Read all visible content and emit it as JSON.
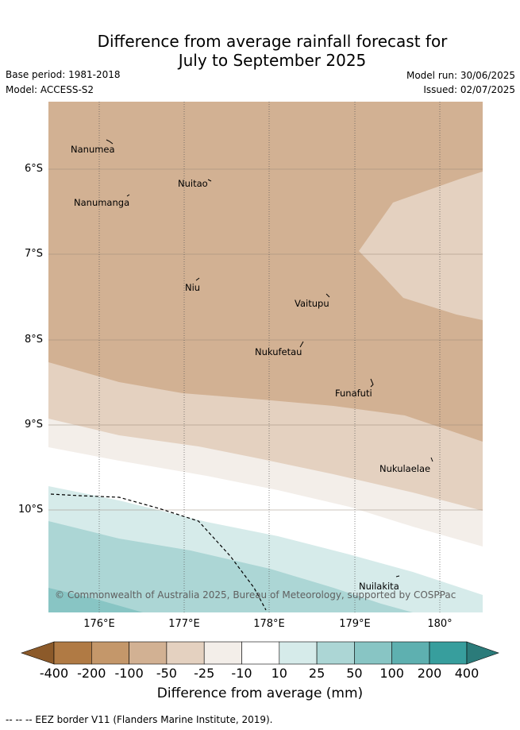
{
  "title_line1": "Difference from average rainfall forecast for",
  "title_line2": "July to September 2025",
  "base_period": "Base period: 1981-2018",
  "model": "Model: ACCESS-S2",
  "model_run": "Model run: 30/06/2025",
  "issued": "Issued: 02/07/2025",
  "map": {
    "lat_labels": [
      "6°S",
      "7°S",
      "8°S",
      "9°S",
      "10°S"
    ],
    "lon_labels": [
      "176°E",
      "177°E",
      "178°E",
      "179°E",
      "180°"
    ],
    "places": [
      "Nanumea",
      "Nuitao",
      "Nanumanga",
      "Niu",
      "Vaitupu",
      "Nukufetau",
      "Funafuti",
      "Nukulaelae",
      "Nuilakita"
    ],
    "credit": "© Commonwealth of Australia 2025, Bureau of Meteorology, supported by COSPPac",
    "legend_eez": "EEZ border"
  },
  "colorbar": {
    "ticks": [
      "-400",
      "-200",
      "-100",
      "-50",
      "-25",
      "-10",
      "10",
      "25",
      "50",
      "100",
      "200",
      "400"
    ],
    "colors": [
      "#8c5a2a",
      "#b07a44",
      "#c4976a",
      "#d2b193",
      "#e4d1c0",
      "#f3eee9",
      "#ffffff",
      "#d6ebea",
      "#acd6d5",
      "#88c5c4",
      "#5eb0b0",
      "#379e9d",
      "#2b7b7a"
    ],
    "title": "Difference from average (mm)"
  },
  "footer": "-- -- -- EEZ border V11 (Flanders Marine Institute, 2019)."
}
